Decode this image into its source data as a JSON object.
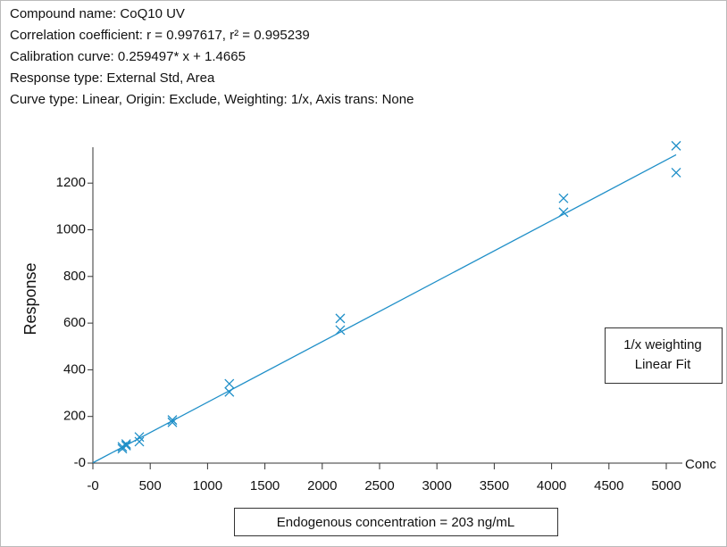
{
  "header": {
    "lines": [
      "Compound name: CoQ10 UV",
      "Correlation coefficient: r = 0.997617, r² = 0.995239",
      "Calibration curve: 0.259497* x + 1.4665",
      "Response type: External Std, Area",
      "Curve type: Linear, Origin: Exclude, Weighting: 1/x, Axis trans: None"
    ]
  },
  "chart_data": {
    "type": "scatter",
    "x_label": "Conc",
    "y_label": "Response",
    "x": [
      257,
      257,
      290,
      290,
      405,
      405,
      693,
      693,
      1190,
      1190,
      2157,
      2157,
      4104,
      4104,
      5086,
      5086
    ],
    "values": [
      62,
      70,
      75,
      82,
      92,
      112,
      175,
      185,
      305,
      340,
      570,
      620,
      1075,
      1135,
      1245,
      1360
    ],
    "color": "#1f8fc8",
    "fit": {
      "x": [
        0,
        5086
      ],
      "values": [
        1.4665,
        1321.3
      ],
      "color": "#1f8fc8"
    },
    "xlim": [
      0,
      5120
    ],
    "ylim": [
      0,
      1350
    ],
    "xticks": [
      {
        "value": 0,
        "label": "-0"
      },
      500,
      1000,
      1500,
      2000,
      2500,
      3000,
      3500,
      4000,
      4500,
      5000
    ],
    "yticks": [
      {
        "value": 0,
        "label": "-0"
      },
      200,
      400,
      600,
      800,
      1000,
      1200
    ],
    "legend": [
      "1/x weighting",
      "Linear Fit"
    ],
    "annotation": "Endogenous concentration = 203 ng/mL"
  }
}
